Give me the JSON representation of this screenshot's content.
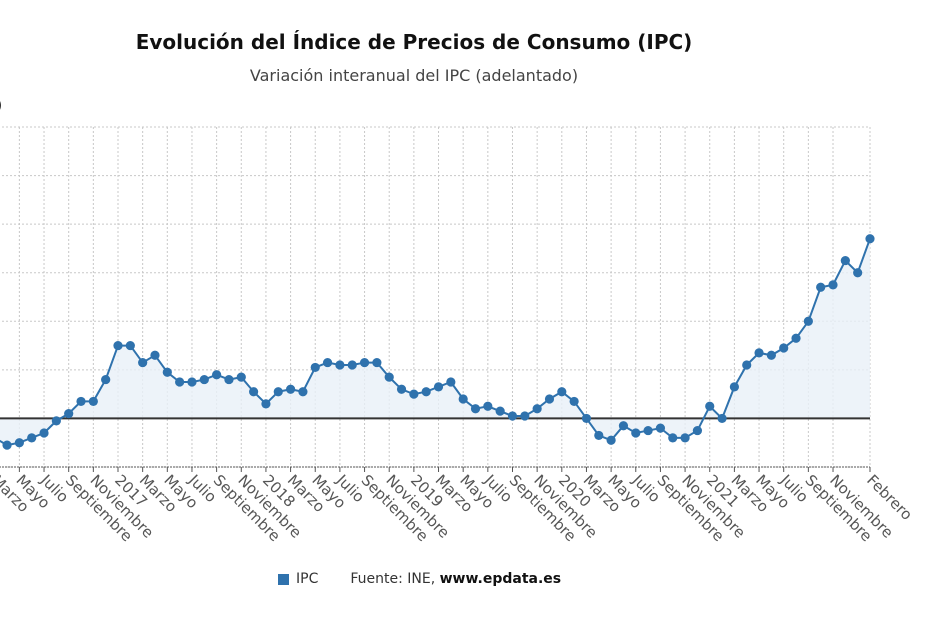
{
  "chart_data": {
    "type": "line",
    "title": "Evolución del Índice de Precios de Consumo (IPC)",
    "subtitle": "Variación interanual del IPC (adelantado)",
    "ylabel": "(%)",
    "ylim": [
      -2,
      12
    ],
    "ygrid_step": 2,
    "grid": true,
    "series": [
      {
        "name": "IPC",
        "color": "#2f72ad",
        "x": [
          "2016-03",
          "2016-04",
          "2016-05",
          "2016-06",
          "2016-07",
          "2016-08",
          "2016-09",
          "2016-10",
          "2016-11",
          "2016-12",
          "2017-01",
          "2017-02",
          "2017-03",
          "2017-04",
          "2017-05",
          "2017-06",
          "2017-07",
          "2017-08",
          "2017-09",
          "2017-10",
          "2017-11",
          "2017-12",
          "2018-01",
          "2018-02",
          "2018-03",
          "2018-04",
          "2018-05",
          "2018-06",
          "2018-07",
          "2018-08",
          "2018-09",
          "2018-10",
          "2018-11",
          "2018-12",
          "2019-01",
          "2019-02",
          "2019-03",
          "2019-04",
          "2019-05",
          "2019-06",
          "2019-07",
          "2019-08",
          "2019-09",
          "2019-10",
          "2019-11",
          "2019-12",
          "2020-01",
          "2020-02",
          "2020-03",
          "2020-04",
          "2020-05",
          "2020-06",
          "2020-07",
          "2020-08",
          "2020-09",
          "2020-10",
          "2020-11",
          "2020-12",
          "2021-01",
          "2021-02",
          "2021-03",
          "2021-04",
          "2021-05",
          "2021-06",
          "2021-07",
          "2021-08",
          "2021-09",
          "2021-10",
          "2021-11",
          "2021-12",
          "2022-01",
          "2022-02"
        ],
        "values": [
          -0.8,
          -1.1,
          -1.0,
          -0.8,
          -0.6,
          -0.1,
          0.2,
          0.7,
          0.7,
          1.6,
          3.0,
          3.0,
          2.3,
          2.6,
          1.9,
          1.5,
          1.5,
          1.6,
          1.8,
          1.6,
          1.7,
          1.1,
          0.6,
          1.1,
          1.2,
          1.1,
          2.1,
          2.3,
          2.2,
          2.2,
          2.3,
          2.3,
          1.7,
          1.2,
          1.0,
          1.1,
          1.3,
          1.5,
          0.8,
          0.4,
          0.5,
          0.3,
          0.1,
          0.1,
          0.4,
          0.8,
          1.1,
          0.7,
          0.0,
          -0.7,
          -0.9,
          -0.3,
          -0.6,
          -0.5,
          -0.4,
          -0.8,
          -0.8,
          -0.5,
          0.5,
          0.0,
          1.3,
          2.2,
          2.7,
          2.6,
          2.9,
          3.3,
          4.0,
          5.4,
          5.5,
          6.5,
          6.0,
          7.4
        ]
      }
    ],
    "x_tick_labels": [
      {
        "x": "2016-03",
        "label": "Marzo"
      },
      {
        "x": "2016-05",
        "label": "Mayo"
      },
      {
        "x": "2016-07",
        "label": "Julio"
      },
      {
        "x": "2016-09",
        "label": "Septiembre"
      },
      {
        "x": "2016-11",
        "label": "Noviembre"
      },
      {
        "x": "2017-01",
        "label": "2017"
      },
      {
        "x": "2017-03",
        "label": "Marzo"
      },
      {
        "x": "2017-05",
        "label": "Mayo"
      },
      {
        "x": "2017-07",
        "label": "Julio"
      },
      {
        "x": "2017-09",
        "label": "Septiembre"
      },
      {
        "x": "2017-11",
        "label": "Noviembre"
      },
      {
        "x": "2018-01",
        "label": "2018"
      },
      {
        "x": "2018-03",
        "label": "Marzo"
      },
      {
        "x": "2018-05",
        "label": "Mayo"
      },
      {
        "x": "2018-07",
        "label": "Julio"
      },
      {
        "x": "2018-09",
        "label": "Septiembre"
      },
      {
        "x": "2018-11",
        "label": "Noviembre"
      },
      {
        "x": "2019-01",
        "label": "2019"
      },
      {
        "x": "2019-03",
        "label": "Marzo"
      },
      {
        "x": "2019-05",
        "label": "Mayo"
      },
      {
        "x": "2019-07",
        "label": "Julio"
      },
      {
        "x": "2019-09",
        "label": "Septiembre"
      },
      {
        "x": "2019-11",
        "label": "Noviembre"
      },
      {
        "x": "2020-01",
        "label": "2020"
      },
      {
        "x": "2020-03",
        "label": "Marzo"
      },
      {
        "x": "2020-05",
        "label": "Mayo"
      },
      {
        "x": "2020-07",
        "label": "Julio"
      },
      {
        "x": "2020-09",
        "label": "Septiembre"
      },
      {
        "x": "2020-11",
        "label": "Noviembre"
      },
      {
        "x": "2021-01",
        "label": "2021"
      },
      {
        "x": "2021-03",
        "label": "Marzo"
      },
      {
        "x": "2021-05",
        "label": "Mayo"
      },
      {
        "x": "2021-07",
        "label": "Julio"
      },
      {
        "x": "2021-09",
        "label": "Septiembre"
      },
      {
        "x": "2021-11",
        "label": "Noviembre"
      },
      {
        "x": "2022-02",
        "label": "Febrero"
      }
    ],
    "legend": {
      "position": "bottom",
      "label": "IPC"
    }
  },
  "source": {
    "prefix": "Fuente: INE, ",
    "site": "www.epdata.es"
  }
}
